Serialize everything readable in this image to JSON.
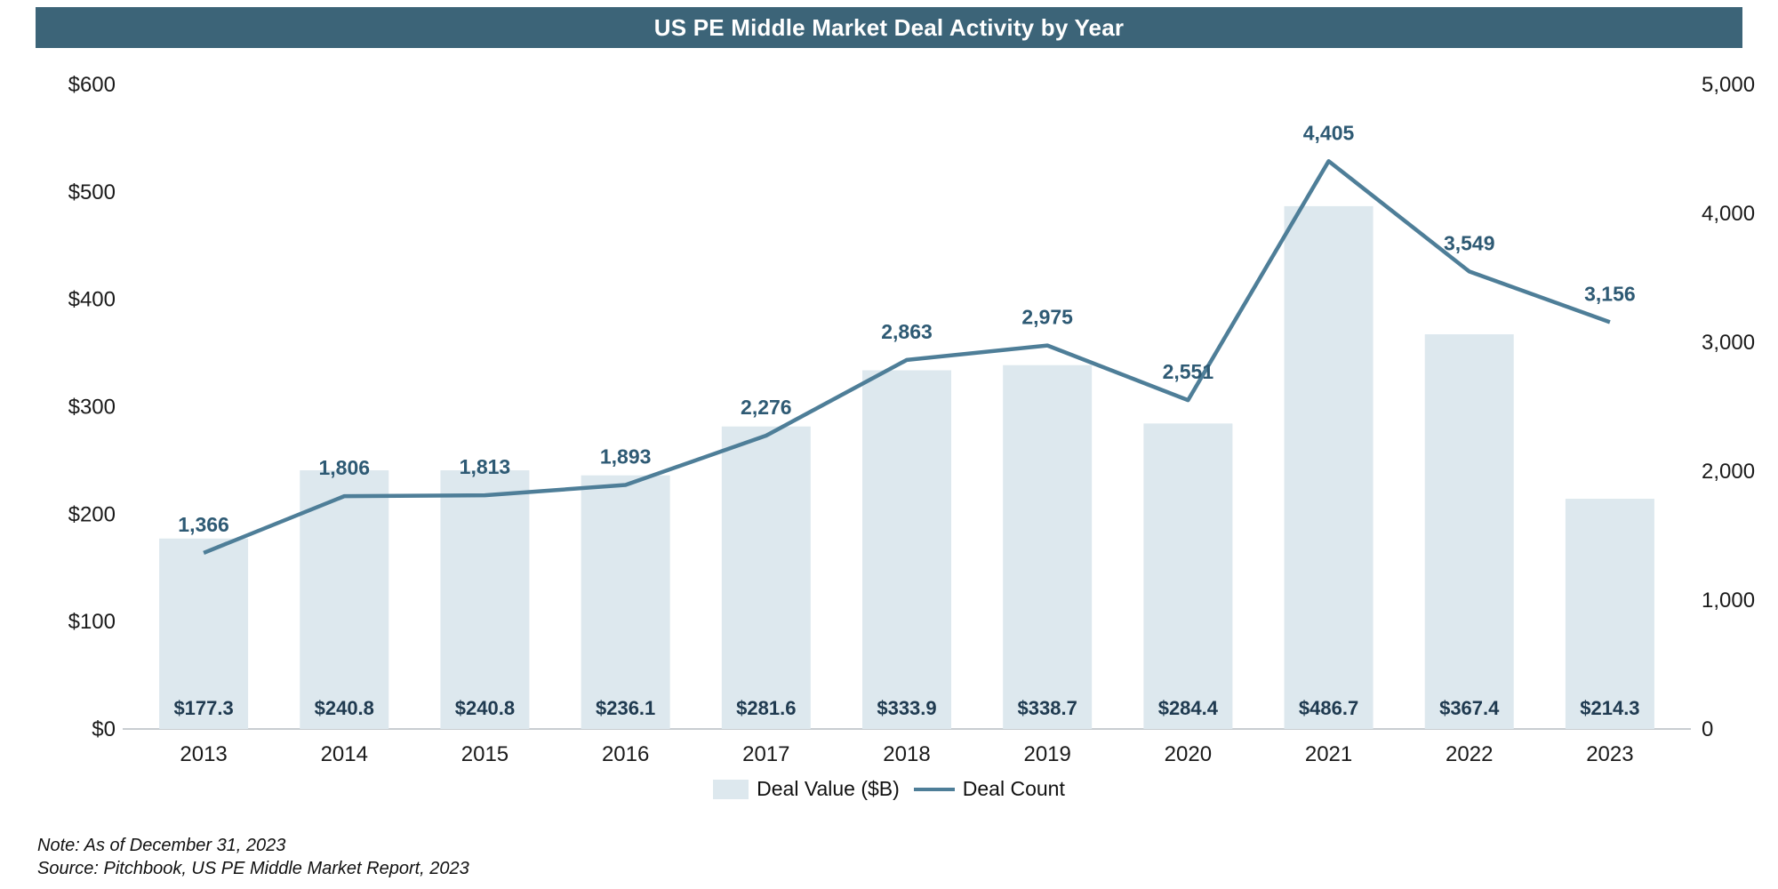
{
  "title": "US PE Middle Market Deal Activity by Year",
  "legend": {
    "bar_label": "Deal Value ($B)",
    "line_label": "Deal Count"
  },
  "notes": [
    "Note: As of December 31, 2023",
    "Source: Pitchbook, US PE Middle Market Report, 2023"
  ],
  "colors": {
    "title_bg": "#3c6478",
    "title_text": "#ffffff",
    "bar_fill": "#dde8ee",
    "line": "#4e7e98",
    "bar_label_color": "#1f3a50",
    "line_label_color": "#2e5a74",
    "axis_text": "#1a1a1a",
    "baseline": "#c8cdd1"
  },
  "chart_data": {
    "type": "bar",
    "subtype": "combo-bar-line-dual-axis",
    "title": "US PE Middle Market Deal Activity by Year",
    "categories": [
      "2013",
      "2014",
      "2015",
      "2016",
      "2017",
      "2018",
      "2019",
      "2020",
      "2021",
      "2022",
      "2023"
    ],
    "series": [
      {
        "name": "Deal Value ($B)",
        "type": "bar",
        "axis": "left",
        "values": [
          177.3,
          240.8,
          240.8,
          236.1,
          281.6,
          333.9,
          338.7,
          284.4,
          486.7,
          367.4,
          214.3
        ],
        "labels": [
          "$177.3",
          "$240.8",
          "$240.8",
          "$236.1",
          "$281.6",
          "$333.9",
          "$338.7",
          "$284.4",
          "$486.7",
          "$367.4",
          "$214.3"
        ]
      },
      {
        "name": "Deal Count",
        "type": "line",
        "axis": "right",
        "values": [
          1366,
          1806,
          1813,
          1893,
          2276,
          2863,
          2975,
          2551,
          4405,
          3549,
          3156
        ],
        "labels": [
          "1,366",
          "1,806",
          "1,813",
          "1,893",
          "2,276",
          "2,863",
          "2,975",
          "2,551",
          "4,405",
          "3,549",
          "3,156"
        ]
      }
    ],
    "left_axis": {
      "label": "Deal Value ($B)",
      "min": 0,
      "max": 600,
      "ticks": [
        "$0",
        "$100",
        "$200",
        "$300",
        "$400",
        "$500",
        "$600"
      ]
    },
    "right_axis": {
      "label": "Deal Count",
      "min": 0,
      "max": 5000,
      "ticks": [
        "0",
        "1,000",
        "2,000",
        "3,000",
        "4,000",
        "5,000"
      ]
    },
    "grid": false,
    "legend_position": "bottom"
  }
}
